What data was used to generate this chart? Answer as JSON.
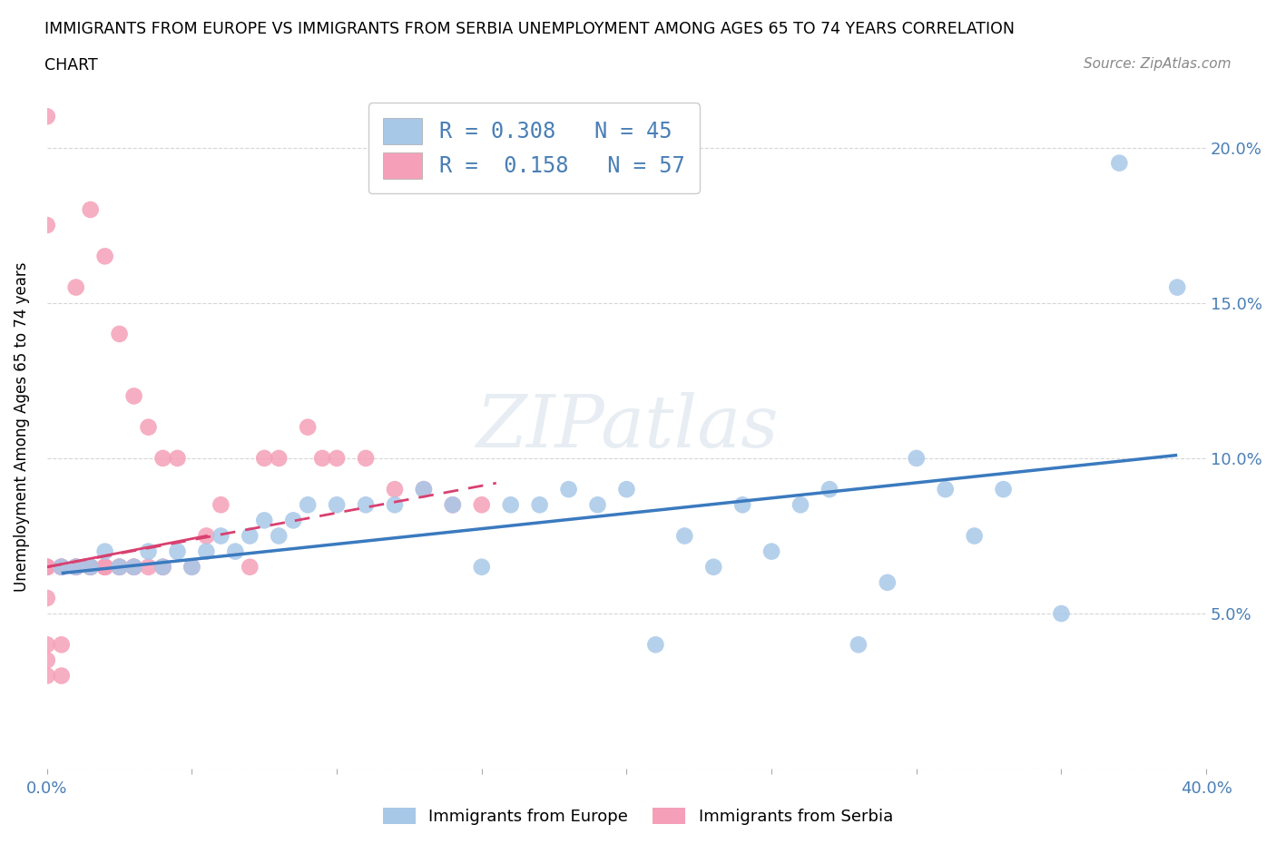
{
  "title_line1": "IMMIGRANTS FROM EUROPE VS IMMIGRANTS FROM SERBIA UNEMPLOYMENT AMONG AGES 65 TO 74 YEARS CORRELATION",
  "title_line2": "CHART",
  "source": "Source: ZipAtlas.com",
  "ylabel": "Unemployment Among Ages 65 to 74 years",
  "xlim": [
    0.0,
    0.4
  ],
  "ylim": [
    0.0,
    0.22
  ],
  "x_ticks": [
    0.0,
    0.05,
    0.1,
    0.15,
    0.2,
    0.25,
    0.3,
    0.35,
    0.4
  ],
  "y_ticks": [
    0.0,
    0.05,
    0.1,
    0.15,
    0.2
  ],
  "legend_europe_R": "0.308",
  "legend_europe_N": "45",
  "legend_serbia_R": "0.158",
  "legend_serbia_N": "57",
  "europe_color": "#a8c8e8",
  "europe_line_color": "#3a7abf",
  "serbia_color": "#f5a0b8",
  "serbia_line_color": "#d94070",
  "watermark_text": "ZIPatlas",
  "europe_scatter_x": [
    0.005,
    0.01,
    0.015,
    0.02,
    0.025,
    0.03,
    0.035,
    0.04,
    0.045,
    0.05,
    0.055,
    0.06,
    0.065,
    0.07,
    0.075,
    0.08,
    0.085,
    0.09,
    0.1,
    0.11,
    0.12,
    0.13,
    0.14,
    0.15,
    0.16,
    0.17,
    0.18,
    0.19,
    0.2,
    0.21,
    0.22,
    0.23,
    0.24,
    0.25,
    0.26,
    0.27,
    0.28,
    0.29,
    0.3,
    0.31,
    0.32,
    0.33,
    0.35,
    0.37,
    0.39
  ],
  "europe_scatter_y": [
    0.065,
    0.065,
    0.065,
    0.07,
    0.065,
    0.065,
    0.07,
    0.065,
    0.07,
    0.065,
    0.07,
    0.075,
    0.07,
    0.075,
    0.08,
    0.075,
    0.08,
    0.085,
    0.085,
    0.085,
    0.085,
    0.09,
    0.085,
    0.065,
    0.085,
    0.085,
    0.09,
    0.085,
    0.09,
    0.04,
    0.075,
    0.065,
    0.085,
    0.07,
    0.085,
    0.09,
    0.04,
    0.06,
    0.1,
    0.09,
    0.075,
    0.09,
    0.05,
    0.195,
    0.155
  ],
  "serbia_scatter_x": [
    0.0,
    0.0,
    0.0,
    0.0,
    0.0,
    0.0,
    0.0,
    0.0,
    0.0,
    0.0,
    0.005,
    0.005,
    0.005,
    0.005,
    0.005,
    0.01,
    0.01,
    0.01,
    0.01,
    0.01,
    0.015,
    0.015,
    0.015,
    0.015,
    0.02,
    0.02,
    0.02,
    0.02,
    0.02,
    0.025,
    0.025,
    0.025,
    0.025,
    0.03,
    0.03,
    0.03,
    0.03,
    0.035,
    0.035,
    0.04,
    0.04,
    0.04,
    0.045,
    0.05,
    0.055,
    0.06,
    0.07,
    0.075,
    0.08,
    0.09,
    0.095,
    0.1,
    0.11,
    0.12,
    0.13,
    0.14,
    0.15
  ],
  "serbia_scatter_y": [
    0.065,
    0.065,
    0.065,
    0.065,
    0.04,
    0.035,
    0.03,
    0.055,
    0.21,
    0.175,
    0.065,
    0.065,
    0.065,
    0.04,
    0.03,
    0.065,
    0.065,
    0.065,
    0.065,
    0.155,
    0.065,
    0.065,
    0.065,
    0.18,
    0.065,
    0.065,
    0.065,
    0.065,
    0.165,
    0.065,
    0.065,
    0.065,
    0.14,
    0.065,
    0.065,
    0.065,
    0.12,
    0.065,
    0.11,
    0.065,
    0.065,
    0.1,
    0.1,
    0.065,
    0.075,
    0.085,
    0.065,
    0.1,
    0.1,
    0.11,
    0.1,
    0.1,
    0.1,
    0.09,
    0.09,
    0.085,
    0.085
  ],
  "europe_trend_x": [
    0.005,
    0.39
  ],
  "europe_trend_y": [
    0.063,
    0.101
  ],
  "serbia_trend_x": [
    0.0,
    0.155
  ],
  "serbia_trend_y": [
    0.065,
    0.095
  ]
}
